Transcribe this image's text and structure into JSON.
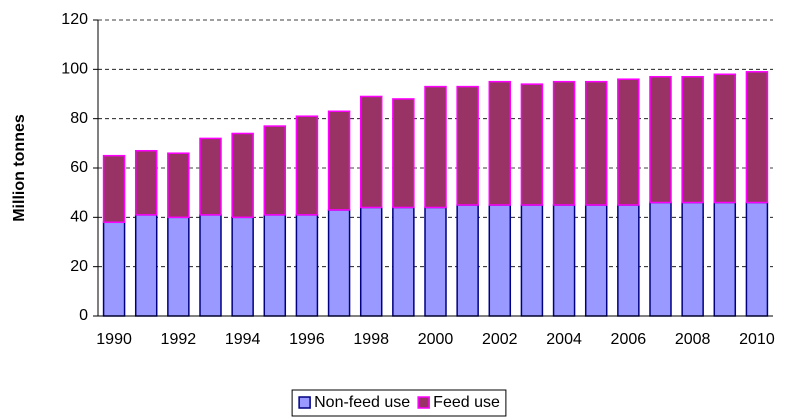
{
  "chart_data": {
    "type": "stacked_bar",
    "y_label": "Million tonnes",
    "categories": [
      "1990",
      null,
      "1992",
      null,
      "1994",
      null,
      "1996",
      null,
      "1998",
      null,
      "2000",
      null,
      "2002",
      null,
      "2004",
      null,
      "2006",
      null,
      "2008",
      null,
      "2010"
    ],
    "series": [
      {
        "name": "Non-feed use",
        "color": "#9999ff",
        "edge": "#000080",
        "values": [
          38,
          41,
          40,
          41,
          40,
          41,
          41,
          43,
          44,
          44,
          44,
          45,
          45,
          45,
          45,
          45,
          45,
          46,
          46,
          46,
          46
        ]
      },
      {
        "name": "Feed use",
        "color": "#993366",
        "edge": "#ff00ff",
        "values": [
          27,
          26,
          26,
          31,
          34,
          36,
          40,
          40,
          45,
          44,
          49,
          48,
          50,
          49,
          50,
          50,
          51,
          51,
          51,
          52,
          53
        ]
      }
    ],
    "ylim": [
      0,
      120
    ],
    "yticks": [
      0,
      20,
      40,
      60,
      80,
      100,
      120
    ],
    "grid": true,
    "legend": "bottom"
  }
}
